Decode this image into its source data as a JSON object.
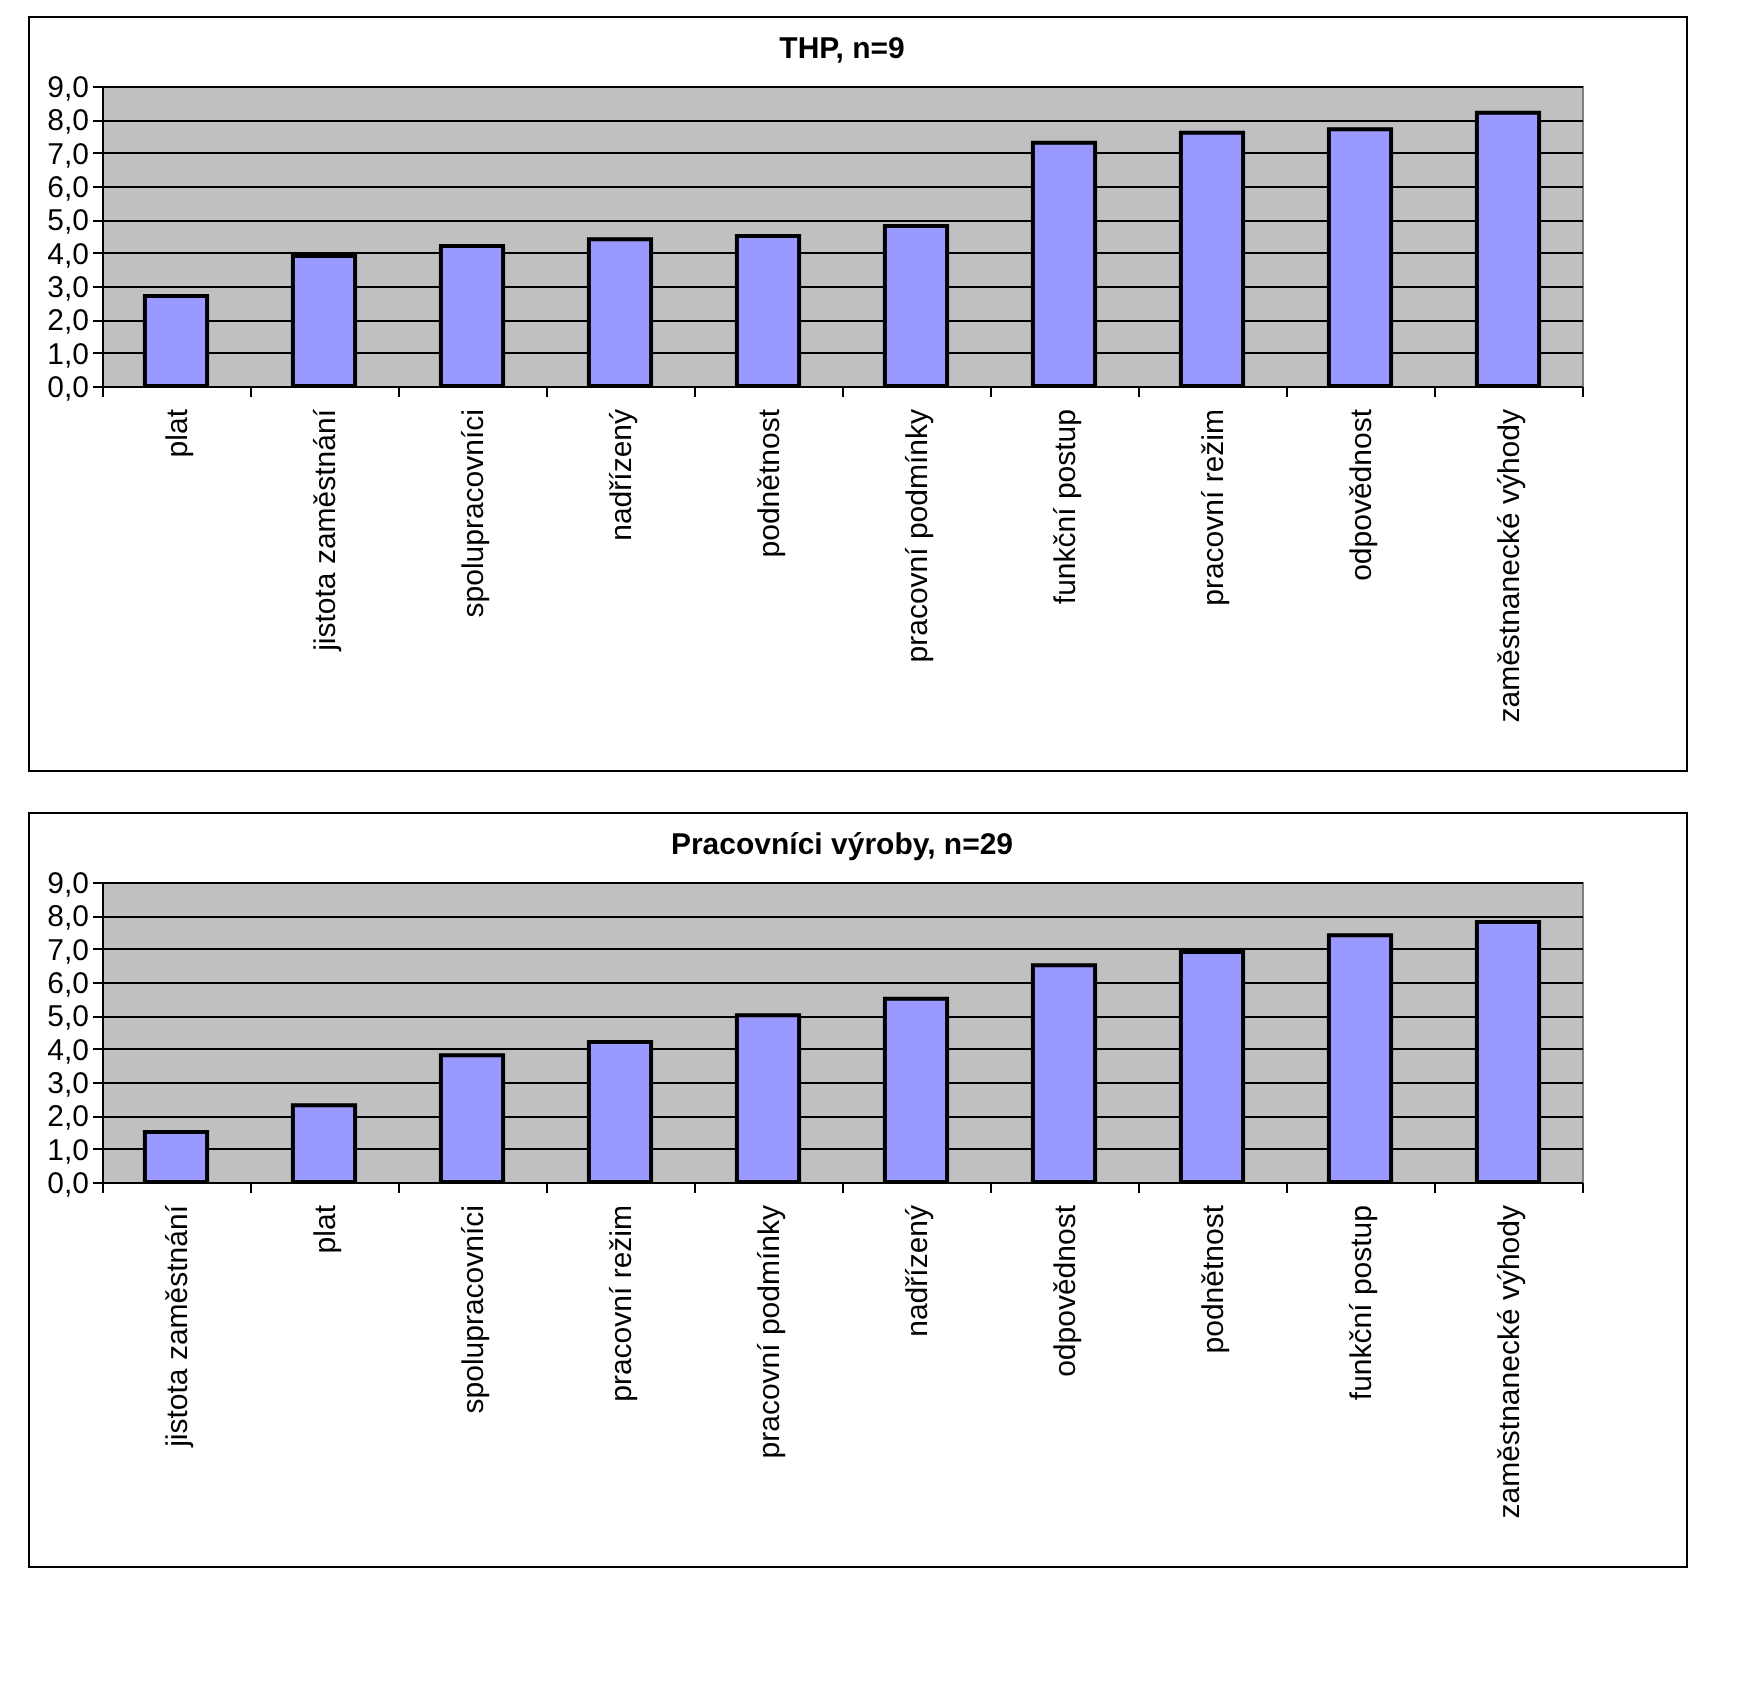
{
  "chart_data": [
    {
      "type": "bar",
      "title": "THP, n=9",
      "categories": [
        "plat",
        "jistota zaměstnání",
        "spolupracovníci",
        "nadřízený",
        "podnětnost",
        "pracovní podmínky",
        "funkční postup",
        "pracovní režim",
        "odpovědnost",
        "zaměstnanecké výhody"
      ],
      "values": [
        2.7,
        3.9,
        4.2,
        4.4,
        4.5,
        4.8,
        7.3,
        7.6,
        7.7,
        8.2
      ],
      "color": "#9999ff",
      "ylim": [
        0,
        9
      ],
      "yticks": [
        {
          "value": 0,
          "label": "0,0"
        },
        {
          "value": 1,
          "label": "1,0"
        },
        {
          "value": 2,
          "label": "2,0"
        },
        {
          "value": 3,
          "label": "3,0"
        },
        {
          "value": 4,
          "label": "4,0"
        },
        {
          "value": 5,
          "label": "5,0"
        },
        {
          "value": 6,
          "label": "6,0"
        },
        {
          "value": 7,
          "label": "7,0"
        },
        {
          "value": 8,
          "label": "8,0"
        },
        {
          "value": 9,
          "label": "9,0"
        }
      ],
      "grid": "y"
    },
    {
      "type": "bar",
      "title": "Pracovníci výroby, n=29",
      "categories": [
        "jistota zaměstnání",
        "plat",
        "spolupracovníci",
        "pracovní režim",
        "pracovní podmínky",
        "nadřízený",
        "odpovědnost",
        "podnětnost",
        "funkční postup",
        "zaměstnanecké výhody"
      ],
      "values": [
        1.5,
        2.3,
        3.8,
        4.2,
        5.0,
        5.5,
        6.5,
        6.9,
        7.4,
        7.8
      ],
      "color": "#9999ff",
      "ylim": [
        0,
        9
      ],
      "yticks": [
        {
          "value": 0,
          "label": "0,0"
        },
        {
          "value": 1,
          "label": "1,0"
        },
        {
          "value": 2,
          "label": "2,0"
        },
        {
          "value": 3,
          "label": "3,0"
        },
        {
          "value": 4,
          "label": "4,0"
        },
        {
          "value": 5,
          "label": "5,0"
        },
        {
          "value": 6,
          "label": "6,0"
        },
        {
          "value": 7,
          "label": "7,0"
        },
        {
          "value": 8,
          "label": "8,0"
        },
        {
          "value": 9,
          "label": "9,0"
        }
      ],
      "grid": "y"
    }
  ]
}
